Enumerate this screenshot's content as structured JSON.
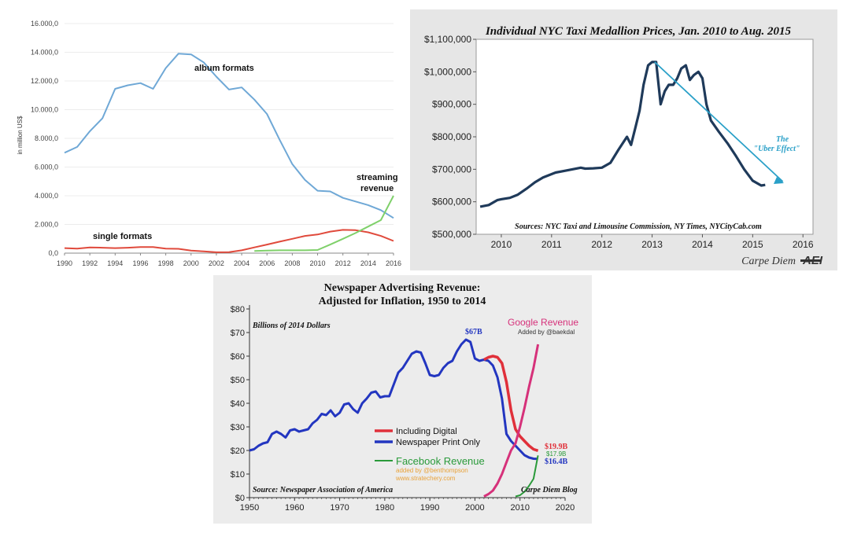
{
  "chart_data": [
    {
      "id": "music",
      "type": "line",
      "title": "",
      "xlabel": "",
      "ylabel": "in million US$",
      "xlim": [
        1990,
        2016
      ],
      "ylim": [
        0,
        16000
      ],
      "x_ticks": [
        "1990",
        "1992",
        "1994",
        "1996",
        "1998",
        "2000",
        "2002",
        "2004",
        "2006",
        "2008",
        "2010",
        "2012",
        "2014",
        "2016"
      ],
      "y_ticks": [
        "0,0",
        "2.000,0",
        "4.000,0",
        "6.000,0",
        "8.000,0",
        "10.000,0",
        "12.000,0",
        "14.000,0",
        "16.000,0"
      ],
      "annotations": [
        "album formats",
        "single formats",
        "streaming",
        "revenue"
      ],
      "series": [
        {
          "name": "album formats",
          "color": "#6fa8d6",
          "x": [
            1990,
            1991,
            1992,
            1993,
            1994,
            1995,
            1996,
            1997,
            1998,
            1999,
            2000,
            2001,
            2002,
            2003,
            2004,
            2005,
            2006,
            2007,
            2008,
            2009,
            2010,
            2011,
            2012,
            2013,
            2014,
            2015,
            2016
          ],
          "y": [
            7000,
            7400,
            8500,
            9400,
            11450,
            11700,
            11850,
            11450,
            12900,
            13900,
            13850,
            13300,
            12300,
            11400,
            11550,
            10700,
            9700,
            7900,
            6200,
            5100,
            4350,
            4300,
            3850,
            3600,
            3350,
            3000,
            2450
          ]
        },
        {
          "name": "single formats",
          "color": "#e04a3c",
          "x": [
            1990,
            1991,
            1992,
            1993,
            1994,
            1995,
            1996,
            1997,
            1998,
            1999,
            2000,
            2001,
            2002,
            2003,
            2004,
            2005,
            2006,
            2007,
            2008,
            2009,
            2010,
            2011,
            2012,
            2013,
            2014,
            2015,
            2016
          ],
          "y": [
            350,
            320,
            400,
            380,
            350,
            380,
            420,
            420,
            320,
            300,
            180,
            120,
            60,
            70,
            200,
            400,
            600,
            800,
            1000,
            1200,
            1300,
            1500,
            1620,
            1600,
            1450,
            1200,
            850
          ]
        },
        {
          "name": "streaming revenue",
          "color": "#7fd06a",
          "x": [
            2005,
            2006,
            2007,
            2008,
            2009,
            2010,
            2011,
            2012,
            2013,
            2014,
            2015,
            2016
          ],
          "y": [
            150,
            180,
            200,
            200,
            200,
            220,
            600,
            1000,
            1400,
            1850,
            2300,
            4000
          ]
        }
      ]
    },
    {
      "id": "taxi",
      "type": "line",
      "title": "Individual NYC Taxi Medallion Prices, Jan. 2010 to Aug. 2015",
      "xlabel": "",
      "ylabel": "",
      "xlim": [
        2009.5,
        2016.2
      ],
      "ylim": [
        500000,
        1100000
      ],
      "x_ticks": [
        "2010",
        "2011",
        "2012",
        "2013",
        "2014",
        "2015",
        "2016"
      ],
      "y_ticks": [
        "$500,000",
        "$600,000",
        "$700,000",
        "$800,000",
        "$900,000",
        "$1,000,000",
        "$1,100,000"
      ],
      "source": "Sources: NYC Taxi and Limousine Commission, NY Times, NYCityCab.com",
      "annotation": [
        "The",
        "\"Uber Effect\""
      ],
      "footer": "Carpe Diem",
      "logo_text": "AEI",
      "series": [
        {
          "name": "Medallion price",
          "color": "#1f3a5a",
          "x": [
            2009.58,
            2009.75,
            2009.92,
            2010.0,
            2010.17,
            2010.33,
            2010.5,
            2010.67,
            2010.83,
            2011.0,
            2011.08,
            2011.25,
            2011.42,
            2011.58,
            2011.67,
            2011.83,
            2012.0,
            2012.17,
            2012.33,
            2012.5,
            2012.58,
            2012.67,
            2012.75,
            2012.83,
            2012.92,
            2013.0,
            2013.08,
            2013.17,
            2013.25,
            2013.33,
            2013.42,
            2013.5,
            2013.58,
            2013.67,
            2013.75,
            2013.83,
            2013.92,
            2014.0,
            2014.08,
            2014.17,
            2014.33,
            2014.5,
            2014.67,
            2014.83,
            2015.0,
            2015.17,
            2015.25
          ],
          "y": [
            585000,
            590000,
            605000,
            608000,
            612000,
            622000,
            640000,
            660000,
            675000,
            685000,
            690000,
            695000,
            700000,
            705000,
            702000,
            703000,
            705000,
            720000,
            760000,
            800000,
            775000,
            830000,
            880000,
            960000,
            1020000,
            1030000,
            1030000,
            900000,
            940000,
            960000,
            960000,
            980000,
            1010000,
            1020000,
            975000,
            990000,
            1000000,
            980000,
            900000,
            850000,
            815000,
            780000,
            740000,
            700000,
            665000,
            650000,
            652000
          ]
        },
        {
          "name": "Uber Effect trend",
          "color": "#2aa0c8",
          "x": [
            2013.05,
            2015.6
          ],
          "y": [
            1030000,
            662000
          ]
        }
      ]
    },
    {
      "id": "news",
      "type": "line",
      "title": "Newspaper Advertising Revenue:",
      "subtitle": "Adjusted for Inflation, 1950 to 2014",
      "ylabel": "Billions of 2014 Dollars",
      "xlabel": "",
      "xlim": [
        1950,
        2020
      ],
      "ylim": [
        0,
        80
      ],
      "x_ticks": [
        "1950",
        "1960",
        "1970",
        "1980",
        "1990",
        "2000",
        "2010",
        "2020"
      ],
      "y_ticks": [
        "$0",
        "$10",
        "$20",
        "$30",
        "$40",
        "$50",
        "$60",
        "$70",
        "$80"
      ],
      "source": "Source: Newspaper Association of America",
      "footer": "Carpe Diem Blog",
      "google_label": "Google Revenue",
      "google_credit": "Added by @baekdal",
      "facebook_label": "Facebook Revenue",
      "facebook_credit_1": "added by @benthompson",
      "facebook_credit_2": "www.stratechery.com",
      "legend": [
        "Including Digital",
        "Newspaper Print Only"
      ],
      "labels": {
        "peak": "$67B",
        "digital_end": "$19.9B",
        "print_end": "$16.4B",
        "facebook_end": "$17.9B"
      },
      "series": [
        {
          "name": "Newspaper Print Only",
          "color": "#2336c0",
          "x": [
            1950,
            1951,
            1952,
            1953,
            1954,
            1955,
            1956,
            1957,
            1958,
            1959,
            1960,
            1961,
            1962,
            1963,
            1964,
            1965,
            1966,
            1967,
            1968,
            1969,
            1970,
            1971,
            1972,
            1973,
            1974,
            1975,
            1976,
            1977,
            1978,
            1979,
            1980,
            1981,
            1982,
            1983,
            1984,
            1985,
            1986,
            1987,
            1988,
            1989,
            1990,
            1991,
            1992,
            1993,
            1994,
            1995,
            1996,
            1997,
            1998,
            1999,
            2000,
            2001,
            2002,
            2003,
            2004,
            2005,
            2006,
            2007,
            2008,
            2009,
            2010,
            2011,
            2012,
            2013,
            2014
          ],
          "y": [
            20,
            20.5,
            22,
            23,
            23.5,
            27,
            28,
            27,
            25.5,
            28.5,
            29,
            28,
            28.5,
            29,
            31.5,
            33,
            35.5,
            35,
            37,
            34.5,
            36,
            39.5,
            40,
            37.5,
            36,
            40,
            42,
            44.5,
            45,
            42.5,
            43,
            43,
            48,
            53,
            55,
            58,
            61,
            62,
            61.5,
            57,
            52,
            51.5,
            52,
            55,
            57,
            58,
            62,
            65,
            67,
            66,
            59,
            58,
            58.5,
            58,
            56,
            51,
            42,
            27,
            24,
            22,
            20,
            18,
            17,
            16.5,
            16.4
          ]
        },
        {
          "name": "Including Digital",
          "color": "#e0303a",
          "x": [
            2002,
            2003,
            2004,
            2005,
            2006,
            2007,
            2008,
            2009,
            2010,
            2011,
            2012,
            2013,
            2014
          ],
          "y": [
            58.5,
            59.5,
            60,
            59.5,
            57,
            49,
            37,
            29,
            26,
            24,
            22,
            20.5,
            19.9
          ]
        },
        {
          "name": "Google Revenue",
          "color": "#d6317a",
          "x": [
            2002,
            2003,
            2004,
            2005,
            2006,
            2007,
            2008,
            2009,
            2010,
            2011,
            2012,
            2013,
            2014
          ],
          "y": [
            0.5,
            1.5,
            3,
            6,
            10,
            15,
            20,
            23,
            30,
            38,
            47,
            55,
            65
          ]
        },
        {
          "name": "Facebook Revenue",
          "color": "#2a9a3a",
          "x": [
            2009,
            2010,
            2011,
            2012,
            2013,
            2014
          ],
          "y": [
            0.5,
            1,
            2.5,
            5,
            8,
            17.9
          ]
        }
      ]
    }
  ]
}
